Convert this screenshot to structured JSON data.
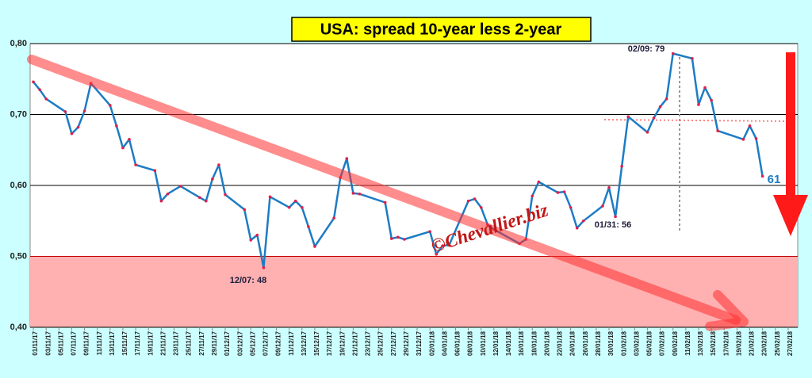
{
  "chart_data": {
    "type": "line",
    "title": "USA: spread 10-year less 2-year",
    "annotations": [
      "12/07: 48",
      "01/31: 56",
      "02/09: 79",
      "61",
      "©Chevallier.biz"
    ],
    "x": [
      "01/11/17",
      "02/11/17",
      "03/11/17",
      "06/11/17",
      "07/11/17",
      "08/11/17",
      "09/11/17",
      "10/11/17",
      "13/11/17",
      "14/11/17",
      "15/11/17",
      "16/11/17",
      "17/11/17",
      "20/11/17",
      "21/11/17",
      "22/11/17",
      "24/11/17",
      "27/11/17",
      "28/11/17",
      "29/11/17",
      "30/11/17",
      "01/12/17",
      "04/12/17",
      "05/12/17",
      "06/12/17",
      "07/12/17",
      "08/12/17",
      "11/12/17",
      "12/12/17",
      "13/12/17",
      "14/12/17",
      "15/12/17",
      "18/12/17",
      "19/12/17",
      "20/12/17",
      "21/12/17",
      "22/12/17",
      "26/12/17",
      "27/12/17",
      "28/12/17",
      "29/12/17",
      "02/01/18",
      "03/01/18",
      "04/01/18",
      "05/01/18",
      "08/01/18",
      "09/01/18",
      "10/01/18",
      "11/01/18",
      "12/01/18",
      "16/01/18",
      "17/01/18",
      "18/01/18",
      "19/01/18",
      "22/01/18",
      "23/01/18",
      "24/01/18",
      "25/01/18",
      "26/01/18",
      "29/01/18",
      "30/01/18",
      "31/01/18",
      "01/02/18",
      "02/02/18",
      "05/02/18",
      "06/02/18",
      "07/02/18",
      "08/02/18",
      "09/02/18",
      "12/02/18",
      "13/02/18",
      "14/02/18",
      "15/02/18",
      "16/02/18",
      "20/02/18",
      "21/02/18",
      "22/02/18",
      "23/02/18"
    ],
    "values": [
      0.746,
      0.735,
      0.722,
      0.704,
      0.673,
      0.682,
      0.705,
      0.744,
      0.713,
      0.684,
      0.653,
      0.665,
      0.629,
      0.621,
      0.578,
      0.588,
      0.599,
      0.583,
      0.578,
      0.609,
      0.629,
      0.587,
      0.566,
      0.523,
      0.53,
      0.484,
      0.584,
      0.569,
      0.578,
      0.569,
      0.542,
      0.514,
      0.554,
      0.611,
      0.638,
      0.589,
      0.588,
      0.576,
      0.525,
      0.527,
      0.524,
      0.535,
      0.503,
      0.515,
      0.516,
      0.578,
      0.581,
      0.569,
      0.545,
      0.538,
      0.518,
      0.524,
      0.585,
      0.605,
      0.59,
      0.591,
      0.569,
      0.54,
      0.55,
      0.571,
      0.597,
      0.556,
      0.627,
      0.697,
      0.675,
      0.695,
      0.711,
      0.722,
      0.786,
      0.779,
      0.714,
      0.738,
      0.72,
      0.677,
      0.665,
      0.684,
      0.666,
      0.613
    ],
    "color": "#1c7cc4",
    "marker_color": "#e0204a",
    "xlim": [
      "01/11/17",
      "28/02/18"
    ],
    "xticks": [
      "01/11/17",
      "03/11/17",
      "05/11/17",
      "07/11/17",
      "09/11/17",
      "11/11/17",
      "13/11/17",
      "15/11/17",
      "17/11/17",
      "19/11/17",
      "21/11/17",
      "23/11/17",
      "25/11/17",
      "27/11/17",
      "29/11/17",
      "01/12/17",
      "03/12/17",
      "05/12/17",
      "07/12/17",
      "09/12/17",
      "11/12/17",
      "13/12/17",
      "15/12/17",
      "17/12/17",
      "19/12/17",
      "21/12/17",
      "23/12/17",
      "25/12/17",
      "27/12/17",
      "29/12/17",
      "31/12/17",
      "02/01/18",
      "04/01/18",
      "06/01/18",
      "08/01/18",
      "10/01/18",
      "12/01/18",
      "14/01/18",
      "16/01/18",
      "18/01/18",
      "20/01/18",
      "22/01/18",
      "24/01/18",
      "26/01/18",
      "28/01/18",
      "30/01/18",
      "01/02/18",
      "03/02/18",
      "05/02/18",
      "07/02/18",
      "09/02/18",
      "11/02/18",
      "13/02/18",
      "15/02/18",
      "17/02/18",
      "19/02/18",
      "21/02/18",
      "23/02/18",
      "25/02/18",
      "27/02/18"
    ],
    "ylim": [
      0.4,
      0.8
    ],
    "yticks": [
      {
        "value": 0.4,
        "label": "0,40"
      },
      {
        "value": 0.5,
        "label": "0,50"
      },
      {
        "value": 0.6,
        "label": "0,60"
      },
      {
        "value": 0.7,
        "label": "0,70"
      },
      {
        "value": 0.8,
        "label": "0,80"
      }
    ],
    "grid": true,
    "band": {
      "from": 0.4,
      "to": 0.5,
      "color": "#ffb0b0"
    }
  }
}
